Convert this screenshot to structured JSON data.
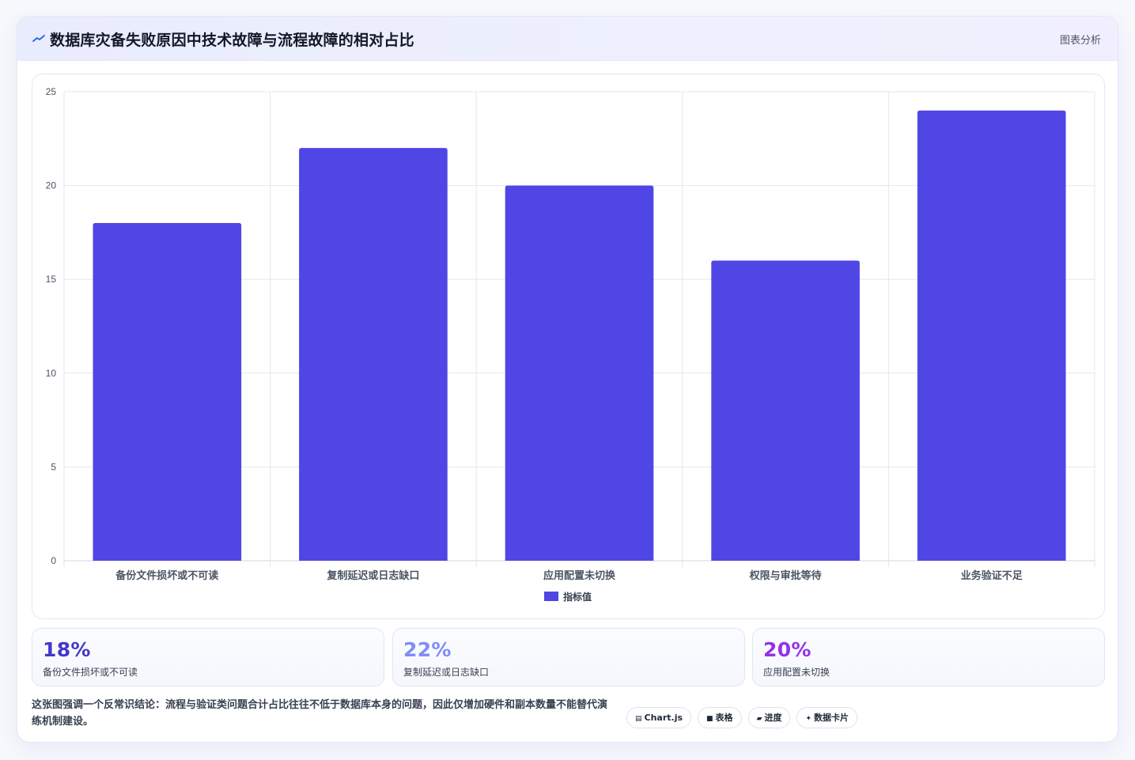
{
  "header": {
    "title": "数据库灾备失败原因中技术故障与流程故障的相对占比",
    "action_label": "图表分析",
    "icon": "trend-line-icon"
  },
  "chart_data": {
    "type": "bar",
    "categories": [
      "备份文件损坏或不可读",
      "复制延迟或日志缺口",
      "应用配置未切换",
      "权限与审批等待",
      "业务验证不足"
    ],
    "series": [
      {
        "name": "指标值",
        "values": [
          18,
          22,
          20,
          16,
          24
        ],
        "color": "#4f46e5"
      }
    ],
    "title": "",
    "xlabel": "",
    "ylabel": "",
    "ylim": [
      0,
      25
    ],
    "yticks": [
      "0",
      "5",
      "10",
      "15",
      "20",
      "25"
    ],
    "grid": true,
    "legend_position": "bottom"
  },
  "stats": [
    {
      "value": "18%",
      "label": "备份文件损坏或不可读",
      "color": "#4338ca"
    },
    {
      "value": "22%",
      "label": "复制延迟或日志缺口",
      "color": "#818cf8"
    },
    {
      "value": "20%",
      "label": "应用配置未切换",
      "color": "#9333ea"
    }
  ],
  "footer": {
    "note": "这张图强调一个反常识结论：流程与验证类问题合计占比往往不低于数据库本身的问题，因此仅增加硬件和副本数量不能替代演练机制建设。",
    "tags": [
      {
        "icon": "▤",
        "label": "Chart.js"
      },
      {
        "icon": "■",
        "label": "表格"
      },
      {
        "icon": "▰",
        "label": "进度"
      },
      {
        "icon": "✦",
        "label": "数据卡片"
      }
    ]
  }
}
